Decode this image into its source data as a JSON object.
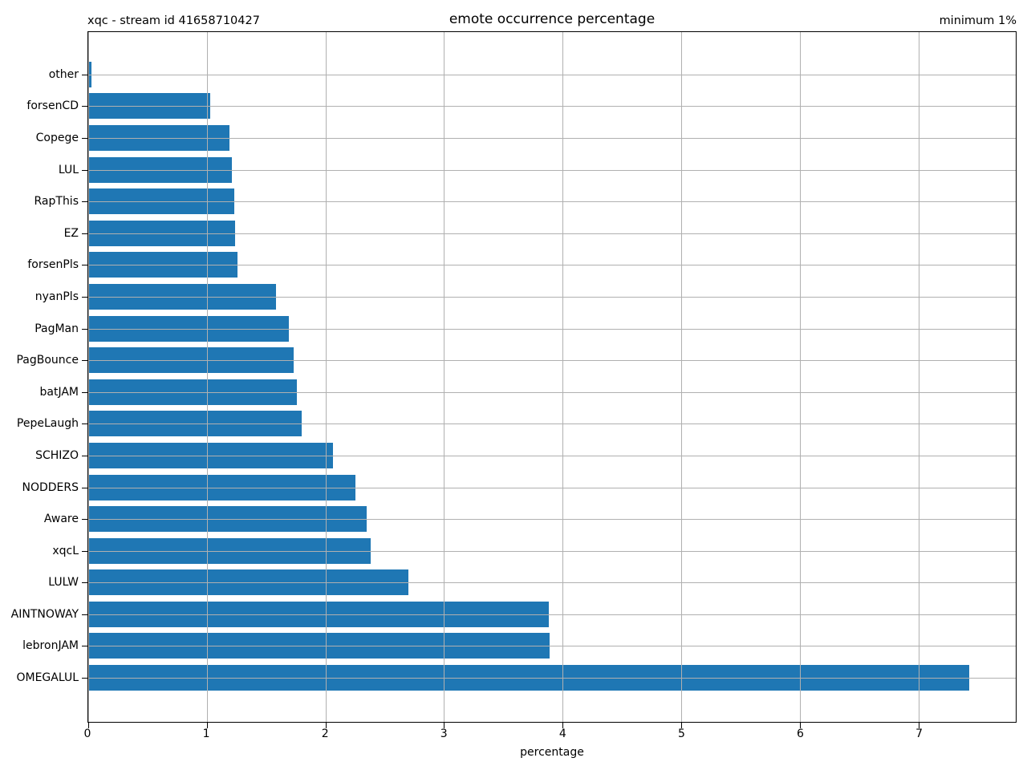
{
  "figure": {
    "background": "#ffffff",
    "spine_color": "#000000"
  },
  "chart_data": {
    "type": "bar",
    "orientation": "horizontal",
    "title": "emote occurrence percentage",
    "annotation_left": "xqc - stream id 41658710427",
    "annotation_right": "minimum 1%",
    "xlabel": "percentage",
    "ylabel": "",
    "xlim": [
      0,
      7.82
    ],
    "xticks": [
      0,
      1,
      2,
      3,
      4,
      5,
      6,
      7
    ],
    "grid": true,
    "grid_over_bars": true,
    "legend": false,
    "bar_color": "#1f77b4",
    "grid_color": "#b0b0b0",
    "categories": [
      "other",
      "forsenCD",
      "Copege",
      "LUL",
      "RapThis",
      "EZ",
      "forsenPls",
      "nyanPls",
      "PagMan",
      "PagBounce",
      "batJAM",
      "PepeLaugh",
      "SCHIZO",
      "NODDERS",
      "Aware",
      "xqcL",
      "LULW",
      "AINTNOWAY",
      "lebronJAM",
      "OMEGALUL"
    ],
    "values": [
      0.03,
      1.03,
      1.19,
      1.21,
      1.23,
      1.24,
      1.26,
      1.58,
      1.69,
      1.73,
      1.76,
      1.8,
      2.06,
      2.25,
      2.35,
      2.38,
      2.7,
      3.88,
      3.89,
      7.43
    ],
    "category_order": "top-to-bottom"
  }
}
